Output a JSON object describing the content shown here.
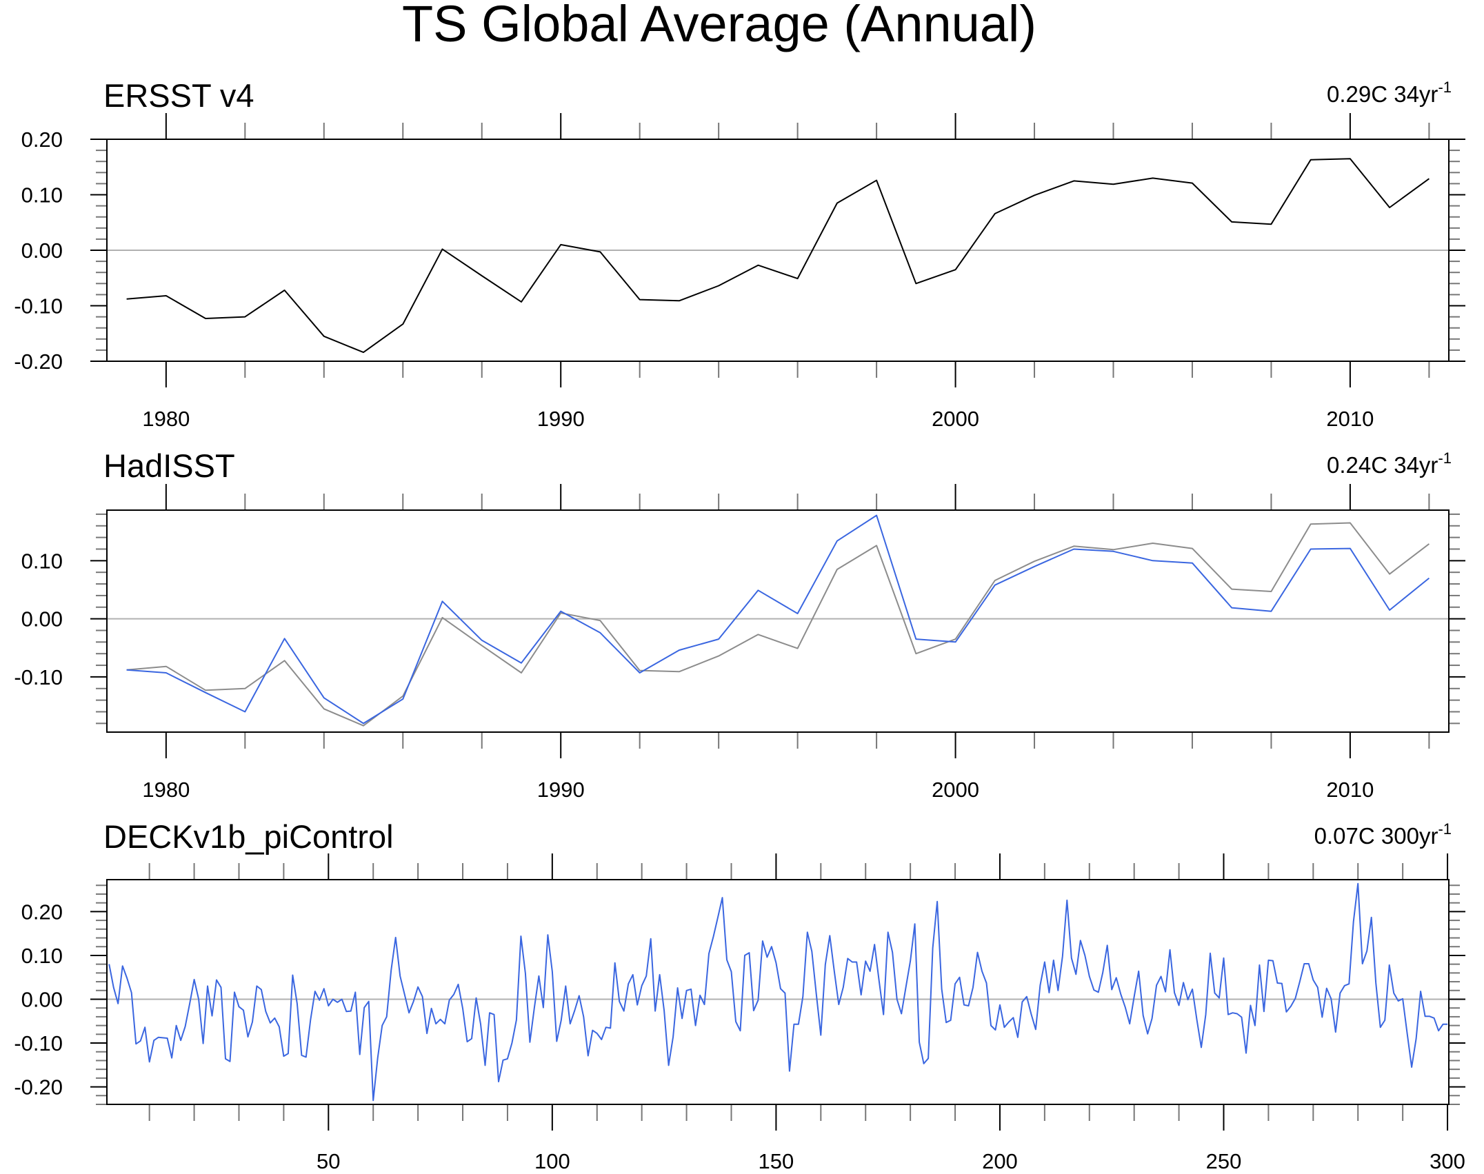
{
  "chart_data": [
    {
      "type": "line",
      "title": "TS Global Average (Annual)",
      "panel_title": "ERSST v4",
      "trend_label": "0.29C 34yr",
      "trend_sup": "-1",
      "xlim": [
        1978.5,
        2012.5
      ],
      "ylim": [
        -0.2,
        0.2
      ],
      "x_major_ticks": [
        1980,
        1990,
        2000,
        2010
      ],
      "x_tick_labels": [
        "1980",
        "1990",
        "2000",
        "2010"
      ],
      "x_minor_step": 2,
      "y_major_ticks": [
        0.2,
        0.1,
        0.0,
        -0.1,
        -0.2
      ],
      "y_tick_labels": [
        "0.20",
        "0.10",
        "0.00",
        "-0.10",
        "-0.20"
      ],
      "y_minor_step": 0.02,
      "x": [
        1979,
        1980,
        1981,
        1982,
        1983,
        1984,
        1985,
        1986,
        1987,
        1988,
        1989,
        1990,
        1991,
        1992,
        1993,
        1994,
        1995,
        1996,
        1997,
        1998,
        1999,
        2000,
        2001,
        2002,
        2003,
        2004,
        2005,
        2006,
        2007,
        2008,
        2009,
        2010,
        2011,
        2012
      ],
      "series": [
        {
          "name": "ERSST v4",
          "color": "#000000",
          "values": [
            -0.088,
            -0.082,
            -0.123,
            -0.12,
            -0.072,
            -0.155,
            -0.184,
            -0.133,
            0.002,
            -0.046,
            -0.093,
            0.01,
            -0.003,
            -0.089,
            -0.091,
            -0.064,
            -0.027,
            -0.051,
            0.085,
            0.126,
            -0.06,
            -0.035,
            0.066,
            0.099,
            0.125,
            0.119,
            0.13,
            0.121,
            0.051,
            0.047,
            0.163,
            0.165,
            0.077,
            0.129
          ]
        }
      ]
    },
    {
      "type": "line",
      "panel_title": "HadISST",
      "trend_label": "0.24C 34yr",
      "trend_sup": "-1",
      "xlim": [
        1978.5,
        2012.5
      ],
      "ylim": [
        -0.195,
        0.187
      ],
      "x_major_ticks": [
        1980,
        1990,
        2000,
        2010
      ],
      "x_tick_labels": [
        "1980",
        "1990",
        "2000",
        "2010"
      ],
      "x_minor_step": 2,
      "y_major_ticks": [
        0.1,
        0.0,
        -0.1
      ],
      "y_tick_labels": [
        "0.10",
        "0.00",
        "-0.10"
      ],
      "y_minor_step": 0.02,
      "x": [
        1979,
        1980,
        1981,
        1982,
        1983,
        1984,
        1985,
        1986,
        1987,
        1988,
        1989,
        1990,
        1991,
        1992,
        1993,
        1994,
        1995,
        1996,
        1997,
        1998,
        1999,
        2000,
        2001,
        2002,
        2003,
        2004,
        2005,
        2006,
        2007,
        2008,
        2009,
        2010,
        2011,
        2012
      ],
      "series": [
        {
          "name": "ERSST v4 (reference)",
          "color": "#8c8c8c",
          "values": [
            -0.088,
            -0.082,
            -0.123,
            -0.12,
            -0.072,
            -0.155,
            -0.184,
            -0.133,
            0.002,
            -0.046,
            -0.093,
            0.01,
            -0.003,
            -0.089,
            -0.091,
            -0.064,
            -0.027,
            -0.051,
            0.085,
            0.126,
            -0.06,
            -0.035,
            0.066,
            0.099,
            0.125,
            0.119,
            0.13,
            0.121,
            0.051,
            0.047,
            0.163,
            0.165,
            0.077,
            0.129
          ]
        },
        {
          "name": "HadISST",
          "color": "#3a66e0",
          "values": [
            -0.088,
            -0.093,
            -0.127,
            -0.16,
            -0.034,
            -0.136,
            -0.18,
            -0.138,
            0.03,
            -0.037,
            -0.076,
            0.013,
            -0.024,
            -0.093,
            -0.054,
            -0.035,
            0.049,
            0.009,
            0.134,
            0.178,
            -0.035,
            -0.04,
            0.058,
            0.09,
            0.12,
            0.116,
            0.1,
            0.096,
            0.019,
            0.013,
            0.12,
            0.121,
            0.015,
            0.07
          ]
        }
      ]
    },
    {
      "type": "line",
      "panel_title": "DECKv1b_piControl",
      "trend_label": "0.07C 300yr",
      "trend_sup": "-1",
      "xlim": [
        0.5,
        300.3
      ],
      "ylim": [
        -0.24,
        0.273
      ],
      "x_major_ticks": [
        50,
        100,
        150,
        200,
        250,
        300
      ],
      "x_tick_labels": [
        "50",
        "100",
        "150",
        "200",
        "250",
        "300"
      ],
      "x_minor_step": 10,
      "y_major_ticks": [
        0.2,
        0.1,
        0.0,
        -0.1,
        -0.2
      ],
      "y_tick_labels": [
        "0.20",
        "0.10",
        "0.00",
        "-0.10",
        "-0.20"
      ],
      "y_minor_step": 0.02,
      "x_start": 1,
      "series": [
        {
          "name": "DECKv1b_piControl",
          "color": "#3a66e0",
          "values": [
            0.08,
            0.027,
            -0.01,
            0.076,
            0.048,
            0.015,
            -0.102,
            -0.095,
            -0.064,
            -0.143,
            -0.094,
            -0.087,
            -0.088,
            -0.089,
            -0.134,
            -0.06,
            -0.094,
            -0.062,
            -0.01,
            0.045,
            0,
            -0.101,
            0.03,
            -0.038,
            0.044,
            0.027,
            -0.136,
            -0.142,
            0.016,
            -0.017,
            -0.025,
            -0.086,
            -0.052,
            0.03,
            0.022,
            -0.028,
            -0.054,
            -0.043,
            -0.063,
            -0.13,
            -0.124,
            0.055,
            -0.01,
            -0.128,
            -0.132,
            -0.047,
            0.018,
            -0.002,
            0.024,
            -0.015,
            0,
            -0.007,
            0,
            -0.028,
            -0.027,
            0.016,
            -0.126,
            -0.019,
            -0.005,
            -0.231,
            -0.134,
            -0.06,
            -0.04,
            0.066,
            0.141,
            0.053,
            0.011,
            -0.031,
            -0.005,
            0.028,
            0.006,
            -0.078,
            -0.021,
            -0.056,
            -0.046,
            -0.056,
            -0.002,
            0.011,
            0.034,
            -0.021,
            -0.097,
            -0.09,
            0.003,
            -0.057,
            -0.151,
            -0.031,
            -0.035,
            -0.188,
            -0.139,
            -0.136,
            -0.1,
            -0.047,
            0.144,
            0.059,
            -0.098,
            -0.019,
            0.053,
            -0.019,
            0.147,
            0.063,
            -0.096,
            -0.048,
            0.03,
            -0.056,
            -0.026,
            0.008,
            -0.04,
            -0.129,
            -0.071,
            -0.078,
            -0.092,
            -0.064,
            -0.066,
            0.083,
            -0.005,
            -0.027,
            0.035,
            0.056,
            -0.013,
            0.031,
            0.053,
            0.138,
            -0.027,
            0.056,
            -0.026,
            -0.151,
            -0.086,
            0.026,
            -0.044,
            0.02,
            0.023,
            -0.06,
            0.009,
            -0.012,
            0.104,
            0.143,
            0.187,
            0.232,
            0.09,
            0.063,
            -0.051,
            -0.072,
            0.1,
            0.106,
            -0.026,
            -0.002,
            0.133,
            0.096,
            0.12,
            0.083,
            0.024,
            0.014,
            -0.164,
            -0.057,
            -0.057,
            0.006,
            0.153,
            0.109,
            0.011,
            -0.082,
            0.079,
            0.145,
            0.064,
            -0.012,
            0.027,
            0.093,
            0.085,
            0.085,
            0.01,
            0.087,
            0.064,
            0.125,
            0.043,
            -0.035,
            0.153,
            0.107,
            0,
            -0.033,
            0.027,
            0.087,
            0.172,
            -0.098,
            -0.147,
            -0.135,
            0.117,
            0.223,
            0.023,
            -0.053,
            -0.048,
            0.035,
            0.05,
            -0.013,
            -0.015,
            0.027,
            0.107,
            0.064,
            0.037,
            -0.06,
            -0.07,
            -0.013,
            -0.064,
            -0.052,
            -0.042,
            -0.087,
            -0.006,
            0.006,
            -0.034,
            -0.069,
            0.032,
            0.085,
            0.015,
            0.089,
            0.02,
            0.098,
            0.226,
            0.094,
            0.057,
            0.134,
            0.1,
            0.052,
            0.021,
            0.016,
            0.061,
            0.123,
            0.022,
            0.049,
            0.012,
            -0.018,
            -0.056,
            0.006,
            0.064,
            -0.037,
            -0.079,
            -0.044,
            0.032,
            0.052,
            0.017,
            0.113,
            0.015,
            -0.014,
            0.038,
            -0.001,
            0.023,
            -0.047,
            -0.11,
            -0.035,
            0.105,
            0.014,
            0.003,
            0.094,
            -0.035,
            -0.031,
            -0.033,
            -0.041,
            -0.123,
            -0.014,
            -0.06,
            0.078,
            -0.028,
            0.089,
            0.088,
            0.037,
            0.036,
            -0.029,
            -0.016,
            0.002,
            0.04,
            0.081,
            0.081,
            0.044,
            0.027,
            -0.041,
            0.025,
            0.001,
            -0.075,
            0.014,
            0.031,
            0.035,
            0.177,
            0.264,
            0.081,
            0.11,
            0.187,
            0.037,
            -0.064,
            -0.048,
            0.078,
            0.014,
            -0.004,
            0.001,
            -0.078,
            -0.155,
            -0.09,
            0.018,
            -0.039,
            -0.039,
            -0.043,
            -0.072,
            -0.057,
            -0.057
          ]
        }
      ]
    }
  ]
}
